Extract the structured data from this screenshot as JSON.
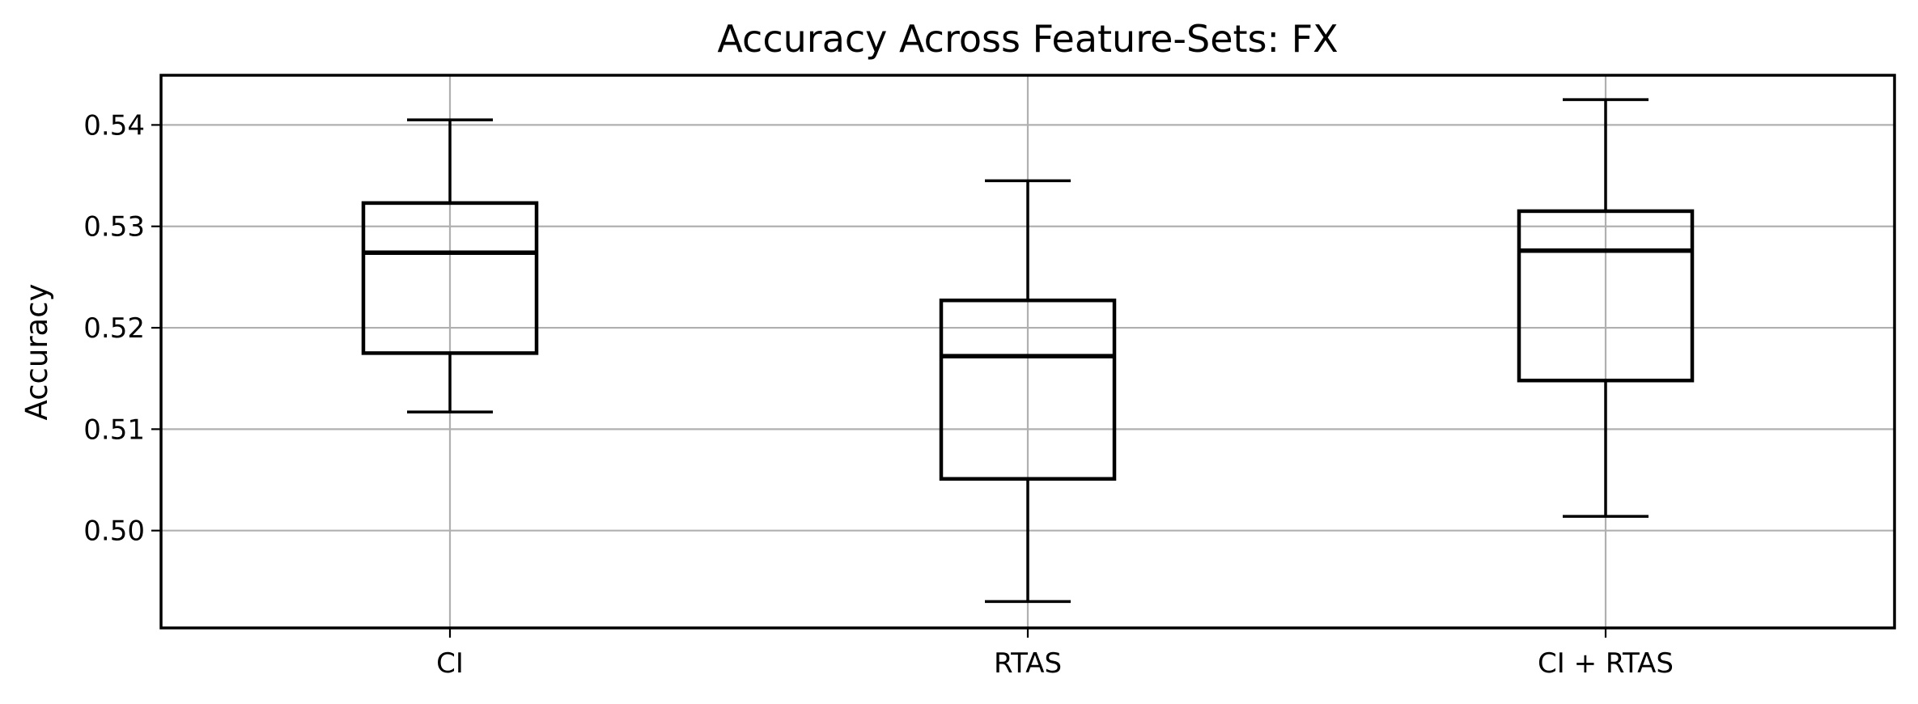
{
  "chart_data": {
    "type": "box",
    "title": "Accuracy Across Feature-Sets: FX",
    "xlabel": "",
    "ylabel": "Accuracy",
    "categories": [
      "CI",
      "RTAS",
      "CI + RTAS"
    ],
    "boxes": [
      {
        "category": "CI",
        "whisker_low": 0.5117,
        "q1": 0.5175,
        "median": 0.5274,
        "q3": 0.5323,
        "whisker_high": 0.5405
      },
      {
        "category": "RTAS",
        "whisker_low": 0.493,
        "q1": 0.5051,
        "median": 0.5172,
        "q3": 0.5227,
        "whisker_high": 0.5345
      },
      {
        "category": "CI + RTAS",
        "whisker_low": 0.5014,
        "q1": 0.5148,
        "median": 0.5276,
        "q3": 0.5315,
        "whisker_high": 0.5425
      }
    ],
    "yticks": [
      0.5,
      0.51,
      0.52,
      0.53,
      0.54
    ],
    "ytick_labels": [
      "0.50",
      "0.51",
      "0.52",
      "0.53",
      "0.54"
    ],
    "ylim": [
      0.4904,
      0.5449
    ],
    "grid": true,
    "colors": {
      "box": "#000000",
      "grid": "#b0b0b0",
      "background": "#ffffff"
    }
  }
}
